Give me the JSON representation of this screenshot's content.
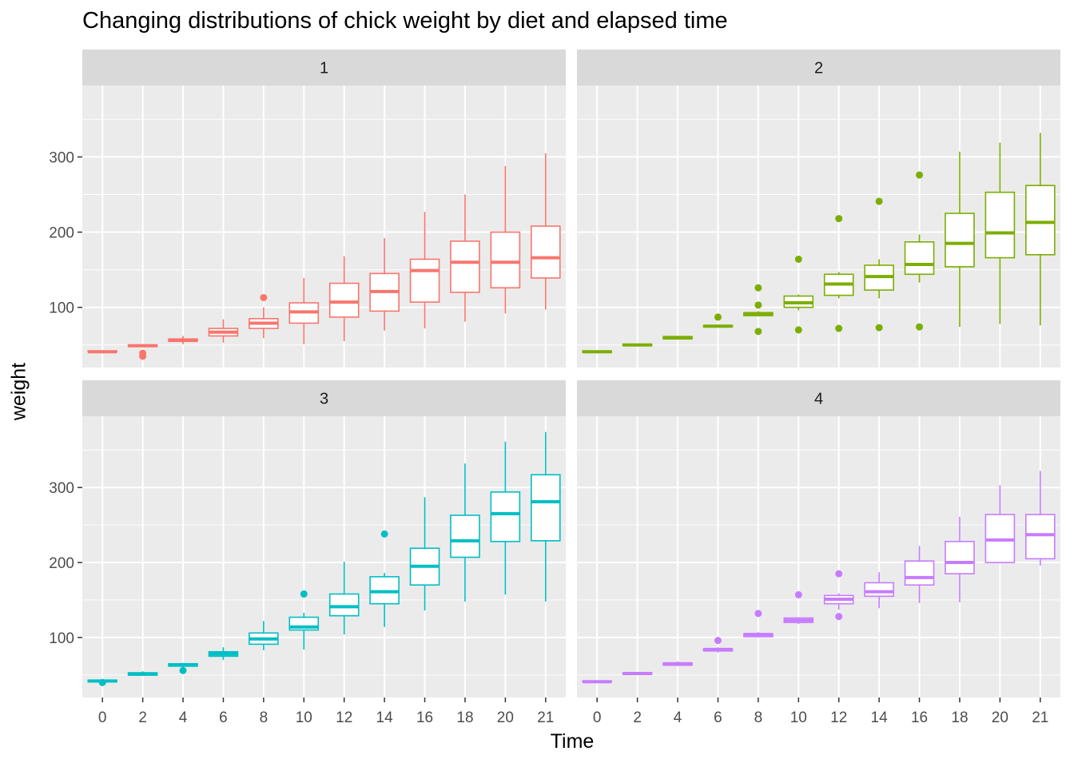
{
  "chart_data": {
    "type": "boxplot",
    "title": "Changing distributions of chick weight by diet and elapsed time",
    "xlabel": "Time",
    "ylabel": "weight",
    "x_categories": [
      "0",
      "2",
      "4",
      "6",
      "8",
      "10",
      "12",
      "14",
      "16",
      "18",
      "20",
      "21"
    ],
    "y_ticks": [
      100,
      200,
      300
    ],
    "ylim": [
      20,
      395
    ],
    "grid": true,
    "facet_labels": [
      "1",
      "2",
      "3",
      "4"
    ],
    "colors": {
      "diet_1": "#F8766D",
      "diet_2": "#7CAE00",
      "diet_3": "#00BFC4",
      "diet_4": "#C77CFF",
      "panel_bg": "#EBEBEB",
      "strip_bg": "#D9D9D9"
    },
    "panels": [
      {
        "label": "1",
        "boxes": [
          {
            "x": "0",
            "lw": 39,
            "q1": 41,
            "med": 41,
            "q3": 42,
            "uw": 43,
            "outliers": []
          },
          {
            "x": "2",
            "lw": 47,
            "q1": 48,
            "med": 49,
            "q3": 50,
            "uw": 51,
            "outliers": [
              35,
              39
            ]
          },
          {
            "x": "4",
            "lw": 51,
            "q1": 55,
            "med": 56,
            "q3": 58,
            "uw": 62,
            "outliers": []
          },
          {
            "x": "6",
            "lw": 53,
            "q1": 62,
            "med": 67,
            "q3": 72,
            "uw": 84,
            "outliers": []
          },
          {
            "x": "8",
            "lw": 59,
            "q1": 72,
            "med": 79,
            "q3": 85,
            "uw": 100,
            "outliers": [
              113
            ]
          },
          {
            "x": "10",
            "lw": 51,
            "q1": 79,
            "med": 94,
            "q3": 106,
            "uw": 139,
            "outliers": []
          },
          {
            "x": "12",
            "lw": 55,
            "q1": 87,
            "med": 107,
            "q3": 132,
            "uw": 168,
            "outliers": []
          },
          {
            "x": "14",
            "lw": 69,
            "q1": 95,
            "med": 121,
            "q3": 145,
            "uw": 192,
            "outliers": []
          },
          {
            "x": "16",
            "lw": 72,
            "q1": 107,
            "med": 149,
            "q3": 164,
            "uw": 227,
            "outliers": []
          },
          {
            "x": "18",
            "lw": 81,
            "q1": 120,
            "med": 160,
            "q3": 188,
            "uw": 250,
            "outliers": []
          },
          {
            "x": "20",
            "lw": 92,
            "q1": 126,
            "med": 160,
            "q3": 200,
            "uw": 288,
            "outliers": []
          },
          {
            "x": "21",
            "lw": 97,
            "q1": 139,
            "med": 166,
            "q3": 208,
            "uw": 305,
            "outliers": []
          }
        ]
      },
      {
        "label": "2",
        "boxes": [
          {
            "x": "0",
            "lw": 40,
            "q1": 40,
            "med": 41,
            "q3": 42,
            "uw": 42,
            "outliers": []
          },
          {
            "x": "2",
            "lw": 48,
            "q1": 49,
            "med": 50,
            "q3": 51,
            "uw": 52,
            "outliers": []
          },
          {
            "x": "4",
            "lw": 57,
            "q1": 58,
            "med": 60,
            "q3": 61,
            "uw": 62,
            "outliers": []
          },
          {
            "x": "6",
            "lw": 74,
            "q1": 74,
            "med": 75,
            "q3": 76,
            "uw": 77,
            "outliers": [
              87
            ]
          },
          {
            "x": "8",
            "lw": 88,
            "q1": 89,
            "med": 91,
            "q3": 93,
            "uw": 95,
            "outliers": [
              126,
              103,
              68
            ]
          },
          {
            "x": "10",
            "lw": 96,
            "q1": 100,
            "med": 106,
            "q3": 115,
            "uw": 117,
            "outliers": [
              164,
              70
            ]
          },
          {
            "x": "12",
            "lw": 112,
            "q1": 116,
            "med": 131,
            "q3": 144,
            "uw": 147,
            "outliers": [
              218,
              72
            ]
          },
          {
            "x": "14",
            "lw": 112,
            "q1": 123,
            "med": 141,
            "q3": 156,
            "uw": 164,
            "outliers": [
              241,
              73
            ]
          },
          {
            "x": "16",
            "lw": 133,
            "q1": 144,
            "med": 157,
            "q3": 187,
            "uw": 197,
            "outliers": [
              276,
              74
            ]
          },
          {
            "x": "18",
            "lw": 74,
            "q1": 154,
            "med": 185,
            "q3": 225,
            "uw": 307,
            "outliers": []
          },
          {
            "x": "20",
            "lw": 78,
            "q1": 166,
            "med": 199,
            "q3": 253,
            "uw": 319,
            "outliers": []
          },
          {
            "x": "21",
            "lw": 76,
            "q1": 170,
            "med": 213,
            "q3": 262,
            "uw": 332,
            "outliers": []
          }
        ]
      },
      {
        "label": "3",
        "boxes": [
          {
            "x": "0",
            "lw": 40,
            "q1": 41,
            "med": 42,
            "q3": 43,
            "uw": 44,
            "outliers": [
              40
            ]
          },
          {
            "x": "2",
            "lw": 49,
            "q1": 50,
            "med": 51,
            "q3": 53,
            "uw": 55,
            "outliers": []
          },
          {
            "x": "4",
            "lw": 60,
            "q1": 62,
            "med": 63,
            "q3": 65,
            "uw": 66,
            "outliers": [
              56
            ]
          },
          {
            "x": "6",
            "lw": 70,
            "q1": 75,
            "med": 78,
            "q3": 81,
            "uw": 87,
            "outliers": []
          },
          {
            "x": "8",
            "lw": 83,
            "q1": 91,
            "med": 98,
            "q3": 106,
            "uw": 122,
            "outliers": []
          },
          {
            "x": "10",
            "lw": 84,
            "q1": 110,
            "med": 114,
            "q3": 127,
            "uw": 133,
            "outliers": [
              158
            ]
          },
          {
            "x": "12",
            "lw": 104,
            "q1": 129,
            "med": 141,
            "q3": 158,
            "uw": 201,
            "outliers": []
          },
          {
            "x": "14",
            "lw": 114,
            "q1": 145,
            "med": 161,
            "q3": 181,
            "uw": 186,
            "outliers": [
              238
            ]
          },
          {
            "x": "16",
            "lw": 136,
            "q1": 170,
            "med": 195,
            "q3": 219,
            "uw": 287,
            "outliers": []
          },
          {
            "x": "18",
            "lw": 148,
            "q1": 207,
            "med": 229,
            "q3": 263,
            "uw": 332,
            "outliers": []
          },
          {
            "x": "20",
            "lw": 157,
            "q1": 228,
            "med": 265,
            "q3": 294,
            "uw": 361,
            "outliers": []
          },
          {
            "x": "21",
            "lw": 148,
            "q1": 229,
            "med": 281,
            "q3": 317,
            "uw": 374,
            "outliers": []
          }
        ]
      },
      {
        "label": "4",
        "boxes": [
          {
            "x": "0",
            "lw": 40,
            "q1": 41,
            "med": 41,
            "q3": 42,
            "uw": 42,
            "outliers": []
          },
          {
            "x": "2",
            "lw": 50,
            "q1": 51,
            "med": 52,
            "q3": 53,
            "uw": 54,
            "outliers": []
          },
          {
            "x": "4",
            "lw": 62,
            "q1": 63,
            "med": 65,
            "q3": 66,
            "uw": 68,
            "outliers": []
          },
          {
            "x": "6",
            "lw": 80,
            "q1": 82,
            "med": 84,
            "q3": 85,
            "uw": 87,
            "outliers": [
              96
            ]
          },
          {
            "x": "8",
            "lw": 100,
            "q1": 101,
            "med": 104,
            "q3": 105,
            "uw": 107,
            "outliers": [
              132
            ]
          },
          {
            "x": "10",
            "lw": 118,
            "q1": 120,
            "med": 123,
            "q3": 126,
            "uw": 127,
            "outliers": [
              157
            ]
          },
          {
            "x": "12",
            "lw": 137,
            "q1": 145,
            "med": 151,
            "q3": 156,
            "uw": 159,
            "outliers": [
              185,
              128
            ]
          },
          {
            "x": "14",
            "lw": 139,
            "q1": 155,
            "med": 161,
            "q3": 173,
            "uw": 187,
            "outliers": []
          },
          {
            "x": "16",
            "lw": 146,
            "q1": 170,
            "med": 180,
            "q3": 202,
            "uw": 222,
            "outliers": []
          },
          {
            "x": "18",
            "lw": 147,
            "q1": 185,
            "med": 200,
            "q3": 228,
            "uw": 261,
            "outliers": []
          },
          {
            "x": "20",
            "lw": 199,
            "q1": 200,
            "med": 230,
            "q3": 264,
            "uw": 303,
            "outliers": []
          },
          {
            "x": "21",
            "lw": 196,
            "q1": 205,
            "med": 237,
            "q3": 264,
            "uw": 322,
            "outliers": []
          }
        ]
      }
    ]
  }
}
